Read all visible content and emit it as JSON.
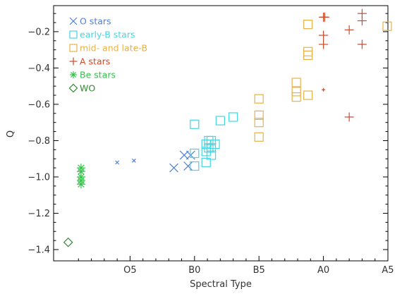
{
  "chart_data": {
    "type": "scatter",
    "title": "",
    "xlabel": "Spectral Type",
    "ylabel": "Q",
    "x_type_labels": [
      {
        "x": 35,
        "label": "O5"
      },
      {
        "x": 40,
        "label": "B0"
      },
      {
        "x": 45,
        "label": "B5"
      },
      {
        "x": 50,
        "label": "A0"
      },
      {
        "x": 55,
        "label": "A5"
      }
    ],
    "xlim": [
      30,
      55
    ],
    "ylim": [
      -1.4,
      -0.08
    ],
    "y_ticks": [
      -1.4,
      -1.2,
      -1.0,
      -0.8,
      -0.6,
      -0.4,
      -0.2
    ],
    "y_tick_labels": [
      "−1.4",
      "−1.2",
      "−1.0",
      "−0.8",
      "−0.6",
      "−0.4",
      "−0.2"
    ],
    "grid": false,
    "legend_position": "top-left",
    "series": [
      {
        "name": "O stars",
        "marker": "x",
        "color": "#4f7fd6",
        "points": [
          {
            "x": 34.0,
            "y": -0.92,
            "small": true
          },
          {
            "x": 35.3,
            "y": -0.91,
            "small": true
          },
          {
            "x": 38.4,
            "y": -0.95
          },
          {
            "x": 39.2,
            "y": -0.88
          },
          {
            "x": 39.5,
            "y": -0.94
          },
          {
            "x": 39.7,
            "y": -0.88
          }
        ]
      },
      {
        "name": "early-B stars",
        "marker": "square",
        "color": "#44d6e4",
        "points": [
          {
            "x": 40.0,
            "y": -0.71
          },
          {
            "x": 40.0,
            "y": -0.87
          },
          {
            "x": 40.0,
            "y": -0.94
          },
          {
            "x": 40.9,
            "y": -0.82
          },
          {
            "x": 40.9,
            "y": -0.86
          },
          {
            "x": 40.9,
            "y": -0.92
          },
          {
            "x": 41.1,
            "y": -0.8
          },
          {
            "x": 41.1,
            "y": -0.84
          },
          {
            "x": 41.3,
            "y": -0.8
          },
          {
            "x": 41.3,
            "y": -0.84
          },
          {
            "x": 41.3,
            "y": -0.88
          },
          {
            "x": 41.6,
            "y": -0.82
          },
          {
            "x": 42.0,
            "y": -0.69
          },
          {
            "x": 43.0,
            "y": -0.67
          }
        ]
      },
      {
        "name": "mid- and late-B",
        "marker": "square",
        "color": "#e8b14a",
        "points": [
          {
            "x": 45.0,
            "y": -0.57
          },
          {
            "x": 45.0,
            "y": -0.66
          },
          {
            "x": 45.0,
            "y": -0.7
          },
          {
            "x": 45.0,
            "y": -0.78
          },
          {
            "x": 47.9,
            "y": -0.48
          },
          {
            "x": 47.9,
            "y": -0.53
          },
          {
            "x": 47.9,
            "y": -0.56
          },
          {
            "x": 48.8,
            "y": -0.16
          },
          {
            "x": 48.8,
            "y": -0.31
          },
          {
            "x": 48.8,
            "y": -0.33
          },
          {
            "x": 48.8,
            "y": -0.55
          },
          {
            "x": 55.0,
            "y": -0.17
          }
        ]
      },
      {
        "name": "A stars",
        "marker": "plus",
        "color": "#cc4a2c",
        "points": [
          {
            "x": 50.0,
            "y": -0.12
          },
          {
            "x": 50.1,
            "y": -0.12
          },
          {
            "x": 50.0,
            "y": -0.22
          },
          {
            "x": 50.0,
            "y": -0.27
          },
          {
            "x": 50.0,
            "y": -0.52,
            "small": true
          },
          {
            "x": 52.0,
            "y": -0.19
          },
          {
            "x": 52.0,
            "y": -0.67
          },
          {
            "x": 53.0,
            "y": -0.1
          },
          {
            "x": 53.0,
            "y": -0.14
          },
          {
            "x": 53.0,
            "y": -0.27
          }
        ]
      },
      {
        "name": "Be stars",
        "marker": "asterisk",
        "color": "#33c44a",
        "points": [
          {
            "x": 31.2,
            "y": -0.95
          },
          {
            "x": 31.2,
            "y": -0.97
          },
          {
            "x": 31.2,
            "y": -1.0
          },
          {
            "x": 31.2,
            "y": -1.02
          },
          {
            "x": 31.2,
            "y": -1.04
          }
        ]
      },
      {
        "name": "WO",
        "marker": "diamond",
        "color": "#2f8a2f",
        "points": [
          {
            "x": 30.2,
            "y": -1.36
          }
        ]
      }
    ]
  }
}
